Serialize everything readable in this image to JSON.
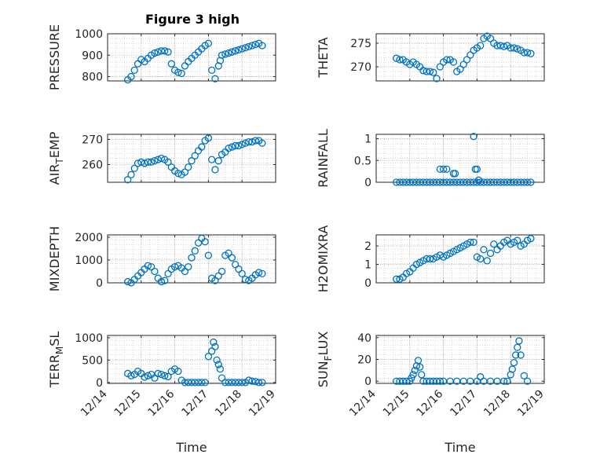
{
  "figure_title": "Figure 3 high",
  "colors": {
    "marker": "#0072BD",
    "axis": "#262626",
    "grid": "#c8c8c8"
  },
  "chart_data": [
    {
      "type": "scatter",
      "ylabel": "PRESSURE",
      "xlabel": "",
      "title": "Figure 3 high",
      "xlim": [
        0,
        5
      ],
      "ylim": [
        780,
        1000
      ],
      "yticks": [
        800,
        900,
        1000
      ],
      "ytick_labels": [
        "800",
        "900",
        "1000"
      ],
      "grid": true,
      "x": [
        0.6,
        0.7,
        0.8,
        0.9,
        1.0,
        1.1,
        1.2,
        1.3,
        1.4,
        1.5,
        1.6,
        1.7,
        1.8,
        1.9,
        2.0,
        2.1,
        2.2,
        2.3,
        2.4,
        2.5,
        2.6,
        2.7,
        2.8,
        2.9,
        3.0,
        3.1,
        3.2,
        3.3,
        3.35,
        3.4,
        3.5,
        3.6,
        3.7,
        3.8,
        3.9,
        4.0,
        4.1,
        4.2,
        4.3,
        4.4,
        4.5,
        4.6
      ],
      "y": [
        785,
        800,
        830,
        860,
        880,
        870,
        885,
        900,
        910,
        915,
        920,
        920,
        915,
        860,
        830,
        820,
        815,
        850,
        870,
        885,
        900,
        915,
        930,
        945,
        955,
        830,
        790,
        850,
        875,
        900,
        905,
        910,
        915,
        920,
        925,
        930,
        935,
        940,
        945,
        950,
        955,
        945
      ]
    },
    {
      "type": "scatter",
      "ylabel": "THETA",
      "xlabel": "",
      "xlim": [
        0,
        5
      ],
      "ylim": [
        267,
        277
      ],
      "yticks": [
        270,
        275
      ],
      "ytick_labels": [
        "270",
        "275"
      ],
      "grid": true,
      "x": [
        0.6,
        0.7,
        0.8,
        0.9,
        1.0,
        1.1,
        1.2,
        1.3,
        1.4,
        1.5,
        1.6,
        1.7,
        1.8,
        1.9,
        2.0,
        2.1,
        2.2,
        2.3,
        2.4,
        2.5,
        2.6,
        2.7,
        2.8,
        2.9,
        3.0,
        3.1,
        3.2,
        3.3,
        3.4,
        3.5,
        3.6,
        3.7,
        3.8,
        3.9,
        4.0,
        4.1,
        4.2,
        4.3,
        4.4,
        4.5,
        4.6
      ],
      "y": [
        271.8,
        271.5,
        271.5,
        271,
        270.5,
        271,
        270.5,
        270,
        269.2,
        269,
        269,
        268.8,
        267.5,
        270,
        271,
        271.5,
        271.5,
        271,
        269,
        269.5,
        270.5,
        271.5,
        272.5,
        273.5,
        274,
        274.5,
        276,
        276.5,
        276,
        275,
        274.5,
        274.5,
        274.3,
        274.5,
        274,
        274,
        273.8,
        273.5,
        273,
        273,
        272.8
      ]
    },
    {
      "type": "scatter",
      "ylabel": "AIR_TEMP",
      "ylabel_parts": [
        "AIR",
        "T",
        "EMP"
      ],
      "xlabel": "",
      "xlim": [
        0,
        5
      ],
      "ylim": [
        253,
        272
      ],
      "yticks": [
        260,
        270
      ],
      "ytick_labels": [
        "260",
        "270"
      ],
      "grid": true,
      "x": [
        0.6,
        0.7,
        0.8,
        0.9,
        1.0,
        1.1,
        1.2,
        1.3,
        1.4,
        1.5,
        1.6,
        1.7,
        1.8,
        1.9,
        2.0,
        2.1,
        2.2,
        2.3,
        2.4,
        2.5,
        2.6,
        2.7,
        2.8,
        2.9,
        3.0,
        3.1,
        3.2,
        3.3,
        3.4,
        3.5,
        3.6,
        3.7,
        3.8,
        3.9,
        4.0,
        4.1,
        4.2,
        4.3,
        4.4,
        4.5,
        4.6
      ],
      "y": [
        254,
        256,
        258.5,
        260.5,
        261,
        260.5,
        261,
        261,
        261.5,
        262,
        262.5,
        262,
        261,
        259,
        257.5,
        256.5,
        256,
        257,
        259,
        261.5,
        263.5,
        265.5,
        267,
        269.5,
        270.5,
        262,
        258,
        261.5,
        264,
        265,
        266.5,
        267,
        267.5,
        267.5,
        268,
        268.5,
        269,
        269,
        269.5,
        269.5,
        268.5
      ]
    },
    {
      "type": "scatter",
      "ylabel": "RAINFALL",
      "xlabel": "",
      "xlim": [
        0,
        5
      ],
      "ylim": [
        0,
        1.1
      ],
      "yticks": [
        0,
        0.5,
        1
      ],
      "ytick_labels": [
        "0",
        "0.5",
        "1"
      ],
      "grid": true,
      "x": [
        0.6,
        0.7,
        0.8,
        0.9,
        1.0,
        1.1,
        1.2,
        1.3,
        1.4,
        1.5,
        1.6,
        1.7,
        1.8,
        1.9,
        2.0,
        2.1,
        2.2,
        2.3,
        2.4,
        2.5,
        2.6,
        2.7,
        2.8,
        2.9,
        3.0,
        3.1,
        3.2,
        3.3,
        3.4,
        3.5,
        3.6,
        3.7,
        3.8,
        3.9,
        4.0,
        4.1,
        4.2,
        4.3,
        4.4,
        4.5,
        4.6,
        1.9,
        2.0,
        2.1,
        2.3,
        2.35,
        2.9,
        2.95,
        3.0,
        3.05
      ],
      "y": [
        0,
        0,
        0,
        0,
        0,
        0,
        0,
        0,
        0,
        0,
        0,
        0,
        0,
        0,
        0,
        0,
        0,
        0,
        0,
        0,
        0,
        0,
        0,
        0,
        0,
        0,
        0,
        0,
        0,
        0,
        0,
        0,
        0,
        0,
        0,
        0,
        0,
        0,
        0,
        0,
        0,
        0.3,
        0.3,
        0.3,
        0.2,
        0.2,
        1.05,
        0.3,
        0.3,
        0.05
      ]
    },
    {
      "type": "scatter",
      "ylabel": "MIXDEPTH",
      "xlabel": "",
      "xlim": [
        0,
        5
      ],
      "ylim": [
        0,
        2100
      ],
      "yticks": [
        0,
        1000,
        2000
      ],
      "ytick_labels": [
        "0",
        "1000",
        "2000"
      ],
      "grid": true,
      "x": [
        0.6,
        0.7,
        0.8,
        0.9,
        1.0,
        1.1,
        1.2,
        1.3,
        1.4,
        1.5,
        1.6,
        1.7,
        1.8,
        1.9,
        2.0,
        2.1,
        2.2,
        2.3,
        2.4,
        2.5,
        2.6,
        2.7,
        2.8,
        2.9,
        3.0,
        3.1,
        3.2,
        3.3,
        3.4,
        3.5,
        3.6,
        3.7,
        3.8,
        3.9,
        4.0,
        4.1,
        4.2,
        4.3,
        4.4,
        4.5,
        4.6
      ],
      "y": [
        50,
        0,
        150,
        300,
        450,
        600,
        750,
        700,
        500,
        200,
        50,
        100,
        400,
        600,
        700,
        750,
        650,
        500,
        700,
        1100,
        1400,
        1750,
        1950,
        1800,
        1200,
        200,
        100,
        300,
        500,
        1200,
        1300,
        1100,
        800,
        600,
        400,
        150,
        100,
        200,
        350,
        450,
        400
      ]
    },
    {
      "type": "scatter",
      "ylabel": "H2OMIXRA",
      "xlabel": "",
      "xlim": [
        0,
        5
      ],
      "ylim": [
        0,
        2.6
      ],
      "yticks": [
        0,
        1,
        2
      ],
      "ytick_labels": [
        "0",
        "1",
        "2"
      ],
      "grid": true,
      "x": [
        0.6,
        0.7,
        0.8,
        0.9,
        1.0,
        1.1,
        1.2,
        1.3,
        1.4,
        1.5,
        1.6,
        1.7,
        1.8,
        1.9,
        2.0,
        2.1,
        2.2,
        2.3,
        2.4,
        2.5,
        2.6,
        2.7,
        2.8,
        2.9,
        3.0,
        3.1,
        3.2,
        3.3,
        3.4,
        3.5,
        3.6,
        3.7,
        3.8,
        3.9,
        4.0,
        4.1,
        4.2,
        4.3,
        4.4,
        4.5,
        4.6
      ],
      "y": [
        0.2,
        0.2,
        0.3,
        0.5,
        0.6,
        0.8,
        1.0,
        1.1,
        1.2,
        1.3,
        1.3,
        1.3,
        1.4,
        1.5,
        1.4,
        1.5,
        1.6,
        1.7,
        1.8,
        1.9,
        2.0,
        2.1,
        2.2,
        2.2,
        1.4,
        1.3,
        1.8,
        1.2,
        1.6,
        2.1,
        1.8,
        2.0,
        2.2,
        2.3,
        2.1,
        2.2,
        2.3,
        2.0,
        2.1,
        2.3,
        2.4
      ]
    },
    {
      "type": "scatter",
      "ylabel": "TERR_MSL",
      "ylabel_parts": [
        "TERR",
        "M",
        "SL"
      ],
      "xlabel": "Time",
      "xlim": [
        0,
        5
      ],
      "ylim": [
        -20,
        1050
      ],
      "yticks": [
        0,
        500,
        1000
      ],
      "ytick_labels": [
        "0",
        "500",
        "1000"
      ],
      "xticks": [
        0,
        1,
        2,
        3,
        4,
        5
      ],
      "xtick_labels": [
        "12/14",
        "12/15",
        "12/16",
        "12/17",
        "12/18",
        "12/19"
      ],
      "grid": true,
      "x": [
        0.6,
        0.7,
        0.8,
        0.9,
        1.0,
        1.1,
        1.2,
        1.3,
        1.4,
        1.5,
        1.6,
        1.7,
        1.8,
        1.9,
        2.0,
        2.1,
        2.2,
        2.3,
        2.4,
        2.5,
        2.6,
        2.7,
        2.8,
        2.9,
        3.0,
        3.1,
        3.15,
        3.2,
        3.25,
        3.3,
        3.35,
        3.4,
        3.5,
        3.6,
        3.7,
        3.8,
        3.9,
        4.0,
        4.1,
        4.2,
        4.3,
        4.4,
        4.5,
        4.6
      ],
      "y": [
        200,
        150,
        180,
        250,
        200,
        120,
        150,
        180,
        100,
        200,
        180,
        150,
        130,
        250,
        300,
        250,
        50,
        0,
        0,
        0,
        0,
        0,
        0,
        0,
        580,
        700,
        900,
        800,
        500,
        400,
        300,
        100,
        0,
        0,
        0,
        0,
        0,
        0,
        0,
        50,
        30,
        20,
        0,
        0
      ]
    },
    {
      "type": "scatter",
      "ylabel": "SUN_FLUX",
      "ylabel_parts": [
        "SUN",
        "F",
        "LUX"
      ],
      "xlabel": "Time",
      "xlim": [
        0,
        5
      ],
      "ylim": [
        -2,
        42
      ],
      "yticks": [
        0,
        20,
        40
      ],
      "ytick_labels": [
        "0",
        "20",
        "40"
      ],
      "xticks": [
        0,
        1,
        2,
        3,
        4,
        5
      ],
      "xtick_labels": [
        "12/14",
        "12/15",
        "12/16",
        "12/17",
        "12/18",
        "12/19"
      ],
      "grid": true,
      "x": [
        0.6,
        0.7,
        0.8,
        0.9,
        1.0,
        1.05,
        1.1,
        1.15,
        1.2,
        1.25,
        1.3,
        1.35,
        1.4,
        1.5,
        1.6,
        1.7,
        1.8,
        1.9,
        2.0,
        2.2,
        2.4,
        2.6,
        2.8,
        3.0,
        3.1,
        3.2,
        3.4,
        3.6,
        3.8,
        3.9,
        4.0,
        4.05,
        4.1,
        4.15,
        4.2,
        4.25,
        4.3,
        4.4,
        4.5
      ],
      "y": [
        0,
        0,
        0,
        0,
        0,
        3,
        6,
        10,
        14,
        19,
        13,
        6,
        0,
        0,
        0,
        0,
        0,
        0,
        0,
        0,
        0,
        0,
        0,
        0,
        4,
        0,
        0,
        0,
        0,
        0,
        6,
        11,
        17,
        24,
        31,
        37,
        24,
        5,
        0
      ]
    }
  ]
}
